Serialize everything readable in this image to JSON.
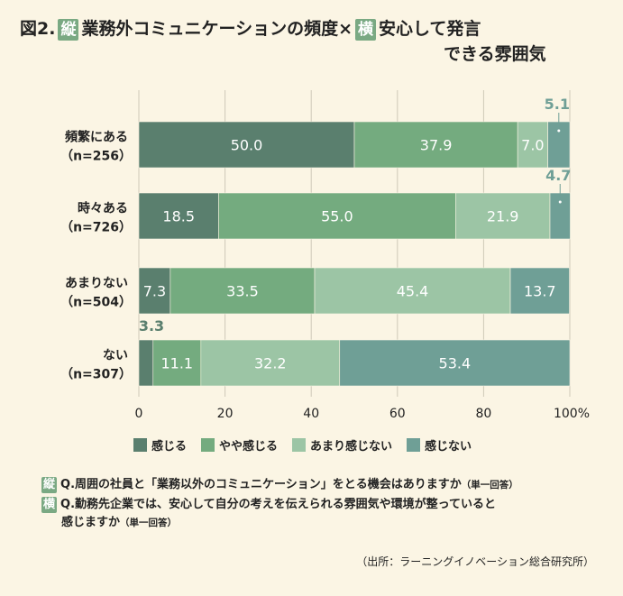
{
  "title": {
    "prefix": "図2.",
    "tate_badge": "縦",
    "tate_text": "業務外コミュニケーションの頻度×",
    "yoko_badge": "横",
    "yoko_text_1": "安心して発言",
    "yoko_text_2": "できる雰囲気"
  },
  "chart_data": {
    "type": "bar",
    "orientation": "horizontal-stacked-100",
    "categories": [
      [
        "頻繁にある",
        "（n=256）"
      ],
      [
        "時々ある",
        "（n=726）"
      ],
      [
        "あまりない",
        "（n=504）"
      ],
      [
        "ない",
        "（n=307）"
      ]
    ],
    "series": [
      {
        "name": "感じる",
        "color": "#5a7f6e",
        "values": [
          50.0,
          18.5,
          7.3,
          3.3
        ]
      },
      {
        "name": "やや感じる",
        "color": "#74ab7f",
        "values": [
          37.9,
          55.0,
          33.5,
          11.1
        ]
      },
      {
        "name": "あまり感じない",
        "color": "#9cc5a5",
        "values": [
          7.0,
          21.9,
          45.4,
          32.2
        ]
      },
      {
        "name": "感じない",
        "color": "#6f9f96",
        "values": [
          5.1,
          4.7,
          13.7,
          53.4
        ]
      }
    ],
    "labels": [
      [
        "50.0",
        "37.9",
        "7.0",
        "5.1"
      ],
      [
        "18.5",
        "55.0",
        "21.9",
        "4.7"
      ],
      [
        "7.3",
        "33.5",
        "45.4",
        "13.7"
      ],
      [
        "3.3",
        "11.1",
        "32.2",
        "53.4"
      ]
    ],
    "xticks": [
      "0",
      "20",
      "40",
      "60",
      "80",
      "100%"
    ],
    "xlim": [
      0,
      100
    ],
    "grid": true
  },
  "questions": {
    "q1_badge": "縦",
    "q1_text": "Q.周囲の社員と「業務以外のコミュニケーション」をとる機会はありますか",
    "q1_note": "（単一回答）",
    "q2_badge": "横",
    "q2_text_1": "Q.勤務先企業では、安心して自分の考えを伝えられる雰囲気や環境が整っていると",
    "q2_text_2": "感じますか",
    "q2_note": "（単一回答）"
  },
  "source": "（出所：ラーニングイノベーション総合研究所）"
}
